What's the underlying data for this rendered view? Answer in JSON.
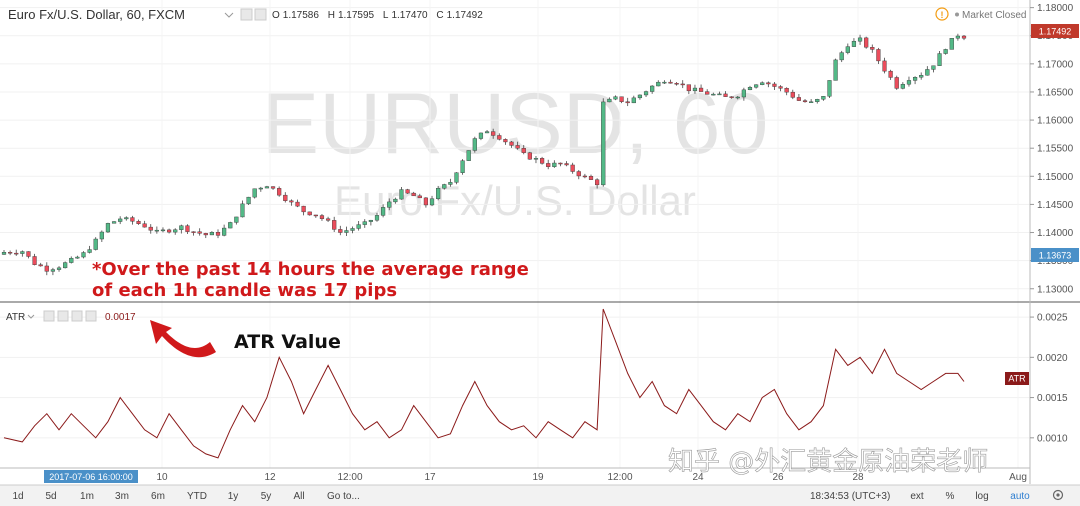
{
  "header": {
    "symbol_title": "Euro Fx/U.S. Dollar, 60, FXCM",
    "ohlc": {
      "o_label": "O",
      "o": "1.17586",
      "h_label": "H",
      "h": "1.17595",
      "l_label": "L",
      "l": "1.17470",
      "c_label": "C",
      "c": "1.17492"
    },
    "market_status": "Market Closed"
  },
  "watermark": {
    "symbol": "EURUSD, 60",
    "description": "Euro Fx/U.S. Dollar"
  },
  "annotations": {
    "range_note_line1": "*Over the past 14 hours the average range",
    "range_note_line2": "of each 1h candle was 17 pips",
    "atr_value_label": "ATR Value"
  },
  "indicator": {
    "name": "ATR",
    "value": "0.0017",
    "badge": "ATR"
  },
  "price_badges": {
    "last": "1.17492",
    "cursor": "1.13673"
  },
  "time_badge": "2017-07-06 16:00:00",
  "time_labels": [
    "10",
    "12",
    "12:00",
    "17",
    "19",
    "12:00",
    "24",
    "26",
    "28",
    "Aug"
  ],
  "toolbar": {
    "ranges": [
      "1d",
      "5d",
      "1m",
      "3m",
      "6m",
      "YTD",
      "1y",
      "5y",
      "All"
    ],
    "goto": "Go to...",
    "clock": "18:34:53 (UTC+3)",
    "right_buttons": [
      "ext",
      "%",
      "log",
      "auto"
    ]
  },
  "site_watermark": "知乎 @外汇黄金原油荣老师",
  "colors": {
    "up": "#53b987",
    "down": "#eb4d5c",
    "atr_line": "#8b1a1a",
    "annotation": "#d0191b",
    "badge_price": "#c0392b",
    "badge_cursor": "#4a90c8",
    "badge_time": "#4a90c8"
  },
  "chart_data": [
    {
      "type": "candlestick",
      "title": "Euro Fx/U.S. Dollar, 60, FXCM",
      "x_ticks": [
        "10",
        "12",
        "12:00",
        "17",
        "19",
        "12:00",
        "24",
        "26",
        "28",
        "Aug"
      ],
      "y_ticks": [
        1.13,
        1.135,
        1.14,
        1.145,
        1.15,
        1.155,
        1.16,
        1.165,
        1.17,
        1.175,
        1.18
      ],
      "ylim": [
        1.128,
        1.181
      ],
      "close_path": [
        [
          0,
          1.1365
        ],
        [
          3,
          1.1367
        ],
        [
          5,
          1.1345
        ],
        [
          7,
          1.1335
        ],
        [
          9,
          1.134
        ],
        [
          11,
          1.135
        ],
        [
          13,
          1.1362
        ],
        [
          15,
          1.1385
        ],
        [
          17,
          1.1415
        ],
        [
          19,
          1.1425
        ],
        [
          21,
          1.142
        ],
        [
          23,
          1.1412
        ],
        [
          25,
          1.14
        ],
        [
          27,
          1.1405
        ],
        [
          29,
          1.141
        ],
        [
          31,
          1.1402
        ],
        [
          33,
          1.1396
        ],
        [
          35,
          1.1398
        ],
        [
          37,
          1.1415
        ],
        [
          39,
          1.1448
        ],
        [
          41,
          1.1478
        ],
        [
          43,
          1.1485
        ],
        [
          45,
          1.147
        ],
        [
          47,
          1.1452
        ],
        [
          49,
          1.1438
        ],
        [
          51,
          1.1432
        ],
        [
          53,
          1.1418
        ],
        [
          55,
          1.14
        ],
        [
          57,
          1.1408
        ],
        [
          59,
          1.1415
        ],
        [
          61,
          1.143
        ],
        [
          63,
          1.1455
        ],
        [
          65,
          1.1472
        ],
        [
          67,
          1.1465
        ],
        [
          69,
          1.145
        ],
        [
          71,
          1.1475
        ],
        [
          73,
          1.149
        ],
        [
          75,
          1.153
        ],
        [
          77,
          1.1565
        ],
        [
          79,
          1.1582
        ],
        [
          81,
          1.157
        ],
        [
          83,
          1.1555
        ],
        [
          85,
          1.1538
        ],
        [
          87,
          1.153
        ],
        [
          89,
          1.152
        ],
        [
          91,
          1.1522
        ],
        [
          93,
          1.151
        ],
        [
          95,
          1.1498
        ],
        [
          97,
          1.1488
        ],
        [
          98,
          1.163
        ],
        [
          100,
          1.1638
        ],
        [
          102,
          1.1632
        ],
        [
          104,
          1.1645
        ],
        [
          106,
          1.166
        ],
        [
          108,
          1.1672
        ],
        [
          110,
          1.1668
        ],
        [
          112,
          1.1655
        ],
        [
          114,
          1.165
        ],
        [
          116,
          1.1645
        ],
        [
          118,
          1.164
        ],
        [
          120,
          1.1645
        ],
        [
          122,
          1.1662
        ],
        [
          124,
          1.167
        ],
        [
          126,
          1.166
        ],
        [
          128,
          1.165
        ],
        [
          130,
          1.1635
        ],
        [
          132,
          1.163
        ],
        [
          134,
          1.164
        ],
        [
          136,
          1.1705
        ],
        [
          138,
          1.1735
        ],
        [
          140,
          1.1742
        ],
        [
          142,
          1.1722
        ],
        [
          144,
          1.169
        ],
        [
          146,
          1.166
        ],
        [
          148,
          1.1675
        ],
        [
          150,
          1.1682
        ],
        [
          152,
          1.17
        ],
        [
          154,
          1.173
        ],
        [
          156,
          1.1752
        ],
        [
          157,
          1.1749
        ]
      ]
    },
    {
      "type": "line",
      "name": "ATR",
      "y_ticks": [
        0.001,
        0.0015,
        0.002,
        0.0025
      ],
      "ylim": [
        0.00065,
        0.00265
      ],
      "x": [
        0,
        3,
        5,
        7,
        9,
        11,
        13,
        15,
        17,
        19,
        21,
        23,
        25,
        27,
        29,
        31,
        33,
        35,
        37,
        39,
        41,
        43,
        45,
        47,
        49,
        51,
        53,
        55,
        57,
        59,
        61,
        63,
        65,
        67,
        69,
        71,
        73,
        75,
        77,
        79,
        81,
        83,
        85,
        87,
        89,
        91,
        93,
        95,
        97,
        98,
        100,
        102,
        104,
        106,
        108,
        110,
        112,
        114,
        116,
        118,
        120,
        122,
        124,
        126,
        128,
        130,
        132,
        134,
        136,
        138,
        140,
        142,
        144,
        146,
        148,
        150,
        152,
        154,
        156,
        157
      ],
      "values": [
        0.001,
        0.00095,
        0.00115,
        0.0013,
        0.0011,
        0.0013,
        0.00115,
        0.001,
        0.0012,
        0.0015,
        0.0013,
        0.0011,
        0.001,
        0.0013,
        0.0011,
        0.0009,
        0.0008,
        0.00075,
        0.0011,
        0.0014,
        0.0012,
        0.0015,
        0.002,
        0.0017,
        0.0013,
        0.0016,
        0.0019,
        0.0016,
        0.0013,
        0.0011,
        0.0012,
        0.001,
        0.0011,
        0.0014,
        0.0012,
        0.001,
        0.00105,
        0.0014,
        0.0017,
        0.0014,
        0.0012,
        0.0011,
        0.00115,
        0.001,
        0.0012,
        0.0011,
        0.001,
        0.0012,
        0.0011,
        0.0026,
        0.0022,
        0.0018,
        0.0015,
        0.0017,
        0.0014,
        0.0013,
        0.0016,
        0.0014,
        0.0012,
        0.0011,
        0.0013,
        0.0012,
        0.0015,
        0.0016,
        0.0013,
        0.0011,
        0.0012,
        0.0014,
        0.0021,
        0.0019,
        0.002,
        0.0018,
        0.0021,
        0.0018,
        0.0017,
        0.0016,
        0.0017,
        0.0018,
        0.0018,
        0.0017
      ]
    }
  ]
}
